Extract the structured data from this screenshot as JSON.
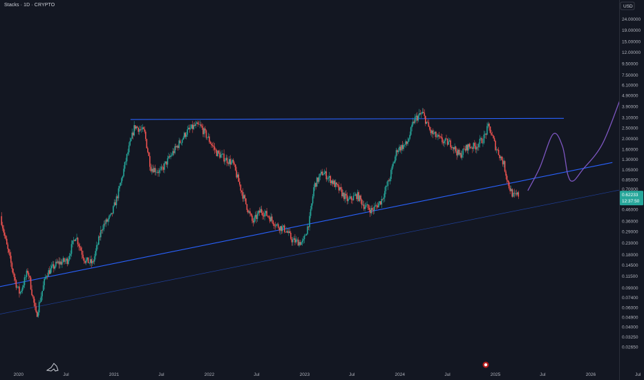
{
  "header": {
    "title": "Stacks · 1D · CRYPTO"
  },
  "currency_label": "USD",
  "colors": {
    "background": "#131722",
    "up": "#26a69a",
    "down": "#ef5350",
    "trendline": "#2962ff",
    "projection": "#7e57c2",
    "price_tag": "#26a69a"
  },
  "chart_data": {
    "type": "candlestick",
    "title": "Stacks · 1D · CRYPTO",
    "y_scale": "log",
    "ylim": [
      0.0205,
      27.5
    ],
    "x_range": [
      "2019-10-22",
      "2026-07-24"
    ],
    "y_ticks": [
      "24.00000",
      "19.00000",
      "15.00000",
      "12.00000",
      "9.50000",
      "7.50000",
      "6.10000",
      "4.90000",
      "3.90000",
      "3.10000",
      "2.50000",
      "2.00000",
      "1.60000",
      "1.30000",
      "1.05000",
      "0.85000",
      "0.70000",
      "0.57000",
      "0.46000",
      "0.36000",
      "0.29000",
      "0.23000",
      "0.18000",
      "0.14500",
      "0.11500",
      "0.09000",
      "0.07400",
      "0.06000",
      "0.04900",
      "0.04000",
      "0.03250",
      "0.02650"
    ],
    "x_ticks": [
      {
        "label": "2020",
        "date": "2020-01-01"
      },
      {
        "label": "Jul",
        "date": "2020-07-01"
      },
      {
        "label": "2021",
        "date": "2021-01-01"
      },
      {
        "label": "Jul",
        "date": "2021-07-01"
      },
      {
        "label": "2022",
        "date": "2022-01-01"
      },
      {
        "label": "Jul",
        "date": "2022-07-01"
      },
      {
        "label": "2023",
        "date": "2023-01-01"
      },
      {
        "label": "Jul",
        "date": "2023-07-01"
      },
      {
        "label": "2024",
        "date": "2024-01-01"
      },
      {
        "label": "Jul",
        "date": "2024-07-01"
      },
      {
        "label": "2025",
        "date": "2025-01-01"
      },
      {
        "label": "Jul",
        "date": "2025-07-01"
      },
      {
        "label": "2026",
        "date": "2026-01-01"
      },
      {
        "label": "Jul",
        "date": "2026-07-01"
      }
    ],
    "price_anchors": [
      [
        "2019-10-28",
        0.4
      ],
      [
        "2019-11-20",
        0.22
      ],
      [
        "2019-12-25",
        0.1
      ],
      [
        "2020-01-10",
        0.08
      ],
      [
        "2020-02-10",
        0.13
      ],
      [
        "2020-03-13",
        0.05
      ],
      [
        "2020-04-20",
        0.12
      ],
      [
        "2020-06-01",
        0.15
      ],
      [
        "2020-07-10",
        0.16
      ],
      [
        "2020-08-10",
        0.27
      ],
      [
        "2020-09-15",
        0.16
      ],
      [
        "2020-10-15",
        0.15
      ],
      [
        "2020-11-20",
        0.32
      ],
      [
        "2020-12-25",
        0.4
      ],
      [
        "2021-01-25",
        0.7
      ],
      [
        "2021-02-20",
        1.3
      ],
      [
        "2021-03-25",
        2.6
      ],
      [
        "2021-05-01",
        2.3
      ],
      [
        "2021-05-25",
        1.1
      ],
      [
        "2021-07-01",
        1.0
      ],
      [
        "2021-08-10",
        1.4
      ],
      [
        "2021-09-10",
        1.8
      ],
      [
        "2021-10-10",
        2.3
      ],
      [
        "2021-11-10",
        2.6
      ],
      [
        "2021-12-01",
        2.6
      ],
      [
        "2022-01-01",
        2.0
      ],
      [
        "2022-02-01",
        1.5
      ],
      [
        "2022-03-10",
        1.3
      ],
      [
        "2022-04-05",
        1.2
      ],
      [
        "2022-05-15",
        0.6
      ],
      [
        "2022-06-20",
        0.35
      ],
      [
        "2022-07-20",
        0.45
      ],
      [
        "2022-08-20",
        0.4
      ],
      [
        "2022-09-20",
        0.33
      ],
      [
        "2022-10-25",
        0.3
      ],
      [
        "2022-11-20",
        0.24
      ],
      [
        "2022-12-30",
        0.23
      ],
      [
        "2023-01-25",
        0.38
      ],
      [
        "2023-02-10",
        0.75
      ],
      [
        "2023-03-15",
        1.0
      ],
      [
        "2023-04-15",
        0.85
      ],
      [
        "2023-05-20",
        0.68
      ],
      [
        "2023-06-20",
        0.55
      ],
      [
        "2023-07-25",
        0.62
      ],
      [
        "2023-08-20",
        0.5
      ],
      [
        "2023-09-20",
        0.45
      ],
      [
        "2023-10-25",
        0.55
      ],
      [
        "2023-11-25",
        0.85
      ],
      [
        "2023-12-25",
        1.6
      ],
      [
        "2024-02-01",
        1.8
      ],
      [
        "2024-03-01",
        3.0
      ],
      [
        "2024-04-01",
        3.4
      ],
      [
        "2024-05-01",
        2.3
      ],
      [
        "2024-06-15",
        1.9
      ],
      [
        "2024-07-20",
        1.8
      ],
      [
        "2024-08-20",
        1.4
      ],
      [
        "2024-09-20",
        1.7
      ],
      [
        "2024-10-20",
        1.7
      ],
      [
        "2024-11-20",
        2.0
      ],
      [
        "2024-12-10",
        2.6
      ],
      [
        "2025-01-05",
        1.7
      ],
      [
        "2025-02-05",
        1.2
      ],
      [
        "2025-02-25",
        0.75
      ],
      [
        "2025-03-15",
        0.6
      ],
      [
        "2025-03-30",
        0.62
      ]
    ],
    "current_price": "0.62233",
    "countdown": "12:37:50",
    "trendlines": [
      {
        "name": "resistance",
        "from": [
          "2021-03-05",
          2.98
        ],
        "to": [
          "2025-09-20",
          3.05
        ]
      },
      {
        "name": "support",
        "from": [
          "2019-10-15",
          0.092
        ],
        "to": [
          "2026-03-25",
          1.22
        ]
      },
      {
        "name": "lower-channel",
        "from": [
          "2019-10-15",
          0.052
        ],
        "to": [
          "2026-06-01",
          0.72
        ]
      }
    ],
    "projection_path": [
      [
        "2025-05-05",
        0.68
      ],
      [
        "2025-06-20",
        1.1
      ],
      [
        "2025-08-10",
        2.2
      ],
      [
        "2025-09-15",
        1.7
      ],
      [
        "2025-10-05",
        0.95
      ],
      [
        "2025-10-25",
        0.83
      ],
      [
        "2025-12-01",
        1.05
      ],
      [
        "2026-02-15",
        1.8
      ],
      [
        "2026-05-01",
        5.0
      ],
      [
        "2026-07-10",
        13.0
      ]
    ]
  }
}
